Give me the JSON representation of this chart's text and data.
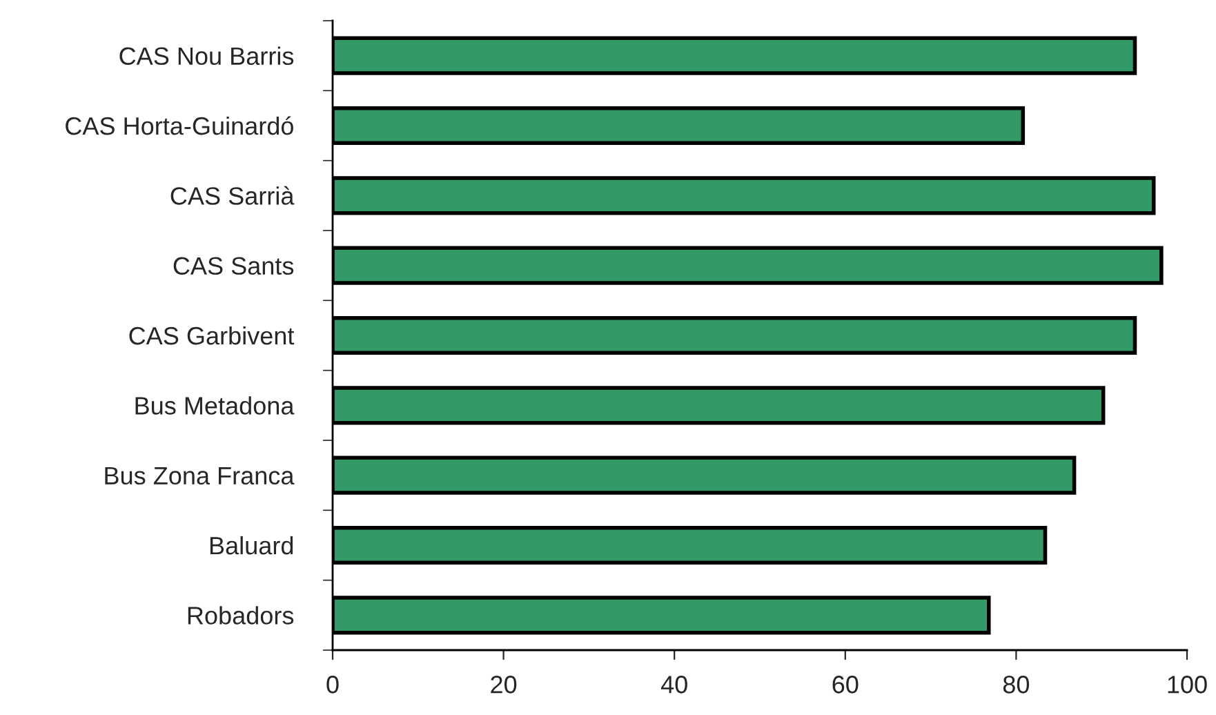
{
  "chart_data": {
    "type": "bar",
    "orientation": "horizontal",
    "categories": [
      "CAS Nou Barris",
      "CAS Horta-Guinardó",
      "CAS Sarrià",
      "CAS Sants",
      "CAS Garbivent",
      "Bus Metadona",
      "Bus Zona Franca",
      "Baluard",
      "Robadors"
    ],
    "series": [
      {
        "color": "#339966",
        "values": [
          93.9,
          80.8,
          96.1,
          97.0,
          93.9,
          90.2,
          86.8,
          83.4,
          76.8
        ]
      }
    ],
    "xlim": [
      0,
      100
    ],
    "xticks": [
      0,
      20,
      40,
      60,
      80,
      100
    ],
    "grid": false,
    "legend": false
  }
}
